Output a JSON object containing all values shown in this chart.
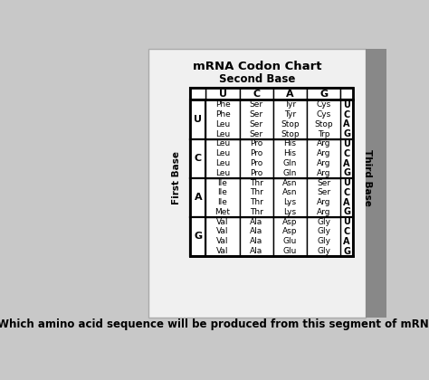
{
  "title_line1": "mRNA Codon Chart",
  "title_line2": "Second Base",
  "second_bases": [
    "U",
    "C",
    "A",
    "G"
  ],
  "first_bases": [
    "U",
    "C",
    "A",
    "G"
  ],
  "third_bases": [
    "U",
    "C",
    "A",
    "G"
  ],
  "table_data": [
    [
      [
        "Phe",
        "Phe",
        "Leu",
        "Leu"
      ],
      [
        "Ser",
        "Ser",
        "Ser",
        "Ser"
      ],
      [
        "Tyr",
        "Tyr",
        "Stop",
        "Stop"
      ],
      [
        "Cys",
        "Cys",
        "Stop",
        "Trp"
      ]
    ],
    [
      [
        "Leu",
        "Leu",
        "Leu",
        "Leu"
      ],
      [
        "Pro",
        "Pro",
        "Pro",
        "Pro"
      ],
      [
        "His",
        "His",
        "Gln",
        "Gln"
      ],
      [
        "Arg",
        "Arg",
        "Arg",
        "Arg"
      ]
    ],
    [
      [
        "Ile",
        "Ile",
        "Ile",
        "Met"
      ],
      [
        "Thr",
        "Thr",
        "Thr",
        "Thr"
      ],
      [
        "Asn",
        "Asn",
        "Lys",
        "Lys"
      ],
      [
        "Ser",
        "Ser",
        "Arg",
        "Arg"
      ]
    ],
    [
      [
        "Val",
        "Val",
        "Val",
        "Val"
      ],
      [
        "Ala",
        "Ala",
        "Ala",
        "Ala"
      ],
      [
        "Asp",
        "Asp",
        "Glu",
        "Glu"
      ],
      [
        "Gly",
        "Gly",
        "Gly",
        "Gly"
      ]
    ]
  ],
  "page_bg": "#c8c8c8",
  "white_card_bg": "#f0f0f0",
  "table_bg": "#ffffff",
  "border_color": "#000000",
  "text_color": "#000000",
  "title_fontsize": 9.5,
  "subtitle_fontsize": 8.5,
  "cell_fontsize": 6.5,
  "header_fontsize": 8,
  "label_fontsize": 7.5,
  "third_fontsize": 7,
  "footer_text": "Which amino acid sequence will be produced from this segment of mRNA?",
  "footer_fontsize": 8.5,
  "right_bar_color": "#555555"
}
